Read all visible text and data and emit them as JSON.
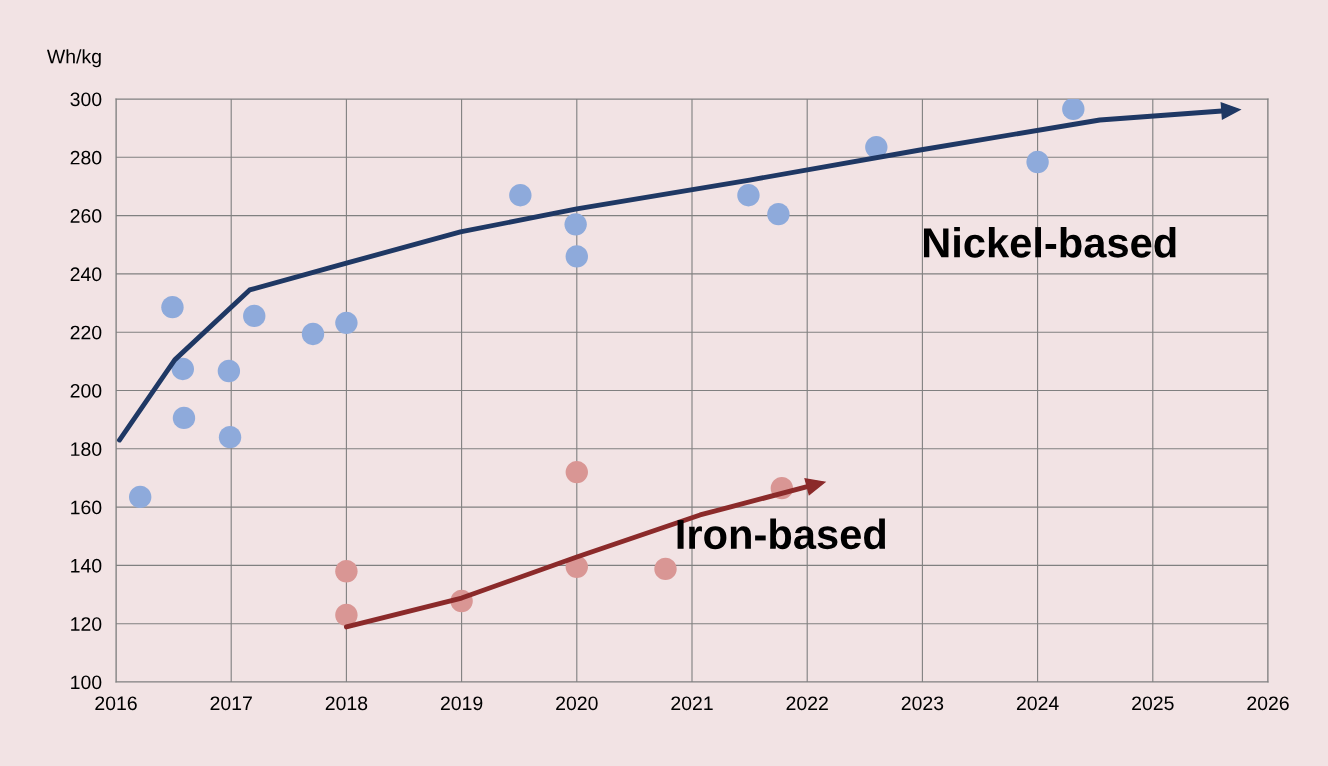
{
  "chart_data": {
    "type": "scatter",
    "ylabel": "Wh/kg",
    "xlim": [
      2016,
      2026
    ],
    "xticks": [
      2016,
      2017,
      2018,
      2019,
      2020,
      2021,
      2022,
      2023,
      2024,
      2025,
      2026
    ],
    "ylim": [
      100,
      300
    ],
    "yticks": [
      100,
      120,
      140,
      160,
      180,
      200,
      220,
      240,
      260,
      280,
      300
    ],
    "grid": true,
    "series": [
      {
        "color": "#8eaadb",
        "marker": "circle",
        "x": [
          2016.21,
          2016.49,
          2016.58,
          2016.59,
          2016.98,
          2016.99,
          2017.2,
          2017.71,
          2018.0,
          2019.51,
          2019.99,
          2020.0,
          2021.49,
          2021.75,
          2022.6,
          2024.0,
          2024.31
        ],
        "values": [
          163.5,
          228.6,
          207.4,
          190.6,
          206.7,
          184,
          225.6,
          219.4,
          223.2,
          267,
          257,
          246,
          267,
          260.5,
          283.5,
          278.4,
          296.6
        ]
      },
      {
        "color": "#d99694",
        "marker": "circle",
        "x": [
          2018.0,
          2018.0,
          2019.0,
          2020.0,
          2020.0,
          2020.77,
          2021.78
        ],
        "values": [
          138,
          123,
          127.8,
          172,
          139.5,
          138.8,
          166.5
        ]
      },
      {
        "type": "line",
        "marker": "none",
        "color": "#1f3864",
        "x": [
          2016.03,
          2016.51,
          2017.16,
          2018.0,
          2018.99,
          2020.0,
          2021.5,
          2022.98,
          2024.54,
          2025.6
        ],
        "values": [
          183,
          210.5,
          234.5,
          243.7,
          254.4,
          262.3,
          272.2,
          282.5,
          292.8,
          295.9
        ]
      },
      {
        "type": "line",
        "marker": "none",
        "color": "#8b2a2a",
        "x": [
          2018.0,
          2019.0,
          2020.0,
          2021.07,
          2022.0
        ],
        "values": [
          118.9,
          128.8,
          142.9,
          157.3,
          167
        ]
      }
    ],
    "annotations": [
      "Nickel-based",
      "Iron-based"
    ]
  }
}
